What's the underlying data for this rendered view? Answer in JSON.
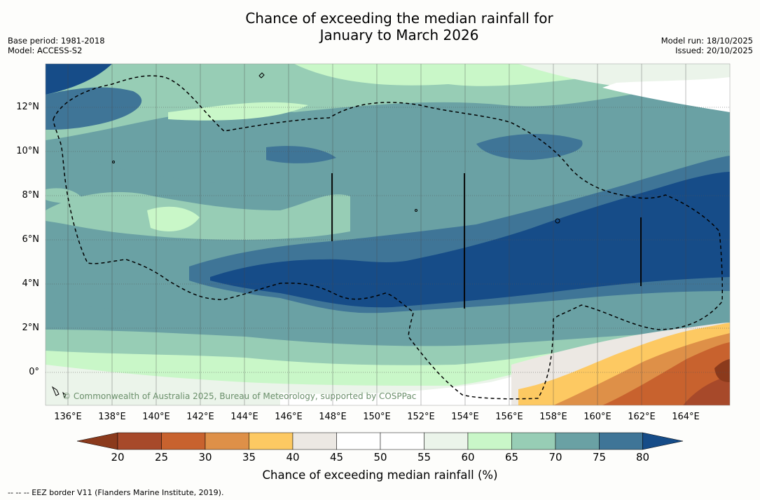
{
  "title": {
    "line1": "Chance of exceeding the median rainfall for",
    "line2": "January to March 2026"
  },
  "meta": {
    "base_period": "Base period: 1981-2018",
    "model": "Model: ACCESS-S2",
    "model_run": "Model run: 18/10/2025",
    "issued": "Issued: 20/10/2025"
  },
  "map": {
    "copyright": "© Commonwealth of Australia 2025, Bureau of Meteorology, supported by COSPPac",
    "lon_labels": [
      "136°E",
      "138°E",
      "140°E",
      "142°E",
      "144°E",
      "146°E",
      "148°E",
      "150°E",
      "152°E",
      "154°E",
      "156°E",
      "158°E",
      "160°E",
      "162°E",
      "164°E"
    ],
    "lat_labels": [
      "12°N",
      "10°N",
      "8°N",
      "6°N",
      "4°N",
      "2°N",
      "0°"
    ]
  },
  "colorbar": {
    "title": "Chance of exceeding median rainfall (%)",
    "ticks": [
      "20",
      "25",
      "30",
      "35",
      "40",
      "45",
      "50",
      "55",
      "60",
      "65",
      "70",
      "75",
      "80"
    ],
    "colors": [
      "#8b3a1c",
      "#a7492a",
      "#c8622e",
      "#de9048",
      "#fdc962",
      "#ece8e3",
      "#ffffff",
      "#ffffff",
      "#ebf4ea",
      "#c9f7c8",
      "#97cdb5",
      "#6aa1a4",
      "#3f7597",
      "#164c88"
    ]
  },
  "footnote": "--  --  -- EEZ border V11 (Flanders Marine Institute, 2019)."
}
